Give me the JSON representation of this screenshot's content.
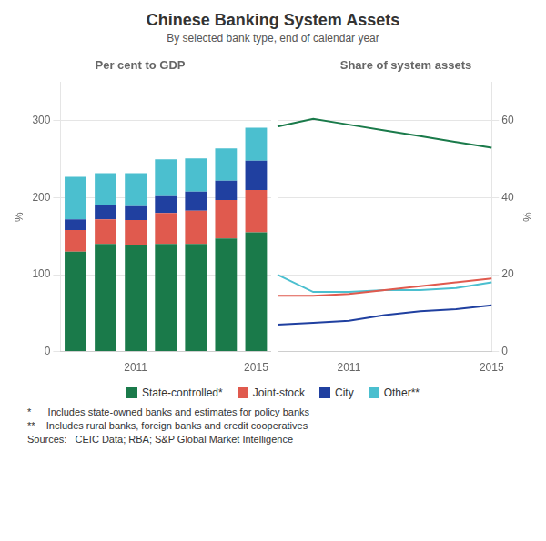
{
  "title": "Chinese Banking System Assets",
  "subtitle": "By selected bank type, end of calendar year",
  "legend": "bottom",
  "annotations": [
    "*      Includes state-owned banks and estimates for policy banks",
    "**    Includes rural banks, foreign banks and credit cooperatives",
    "Sources:   CEIC Data; RBA; S&P Global Market Intelligence"
  ],
  "chart_data": [
    {
      "type": "bar",
      "stacked": true,
      "title": "Per cent to GDP",
      "ylabel": "%",
      "categories": [
        null,
        null,
        "2011",
        null,
        null,
        null,
        "2015"
      ],
      "series": [
        {
          "name": "State-controlled*",
          "color": "#1a7a4a",
          "values": [
            130,
            140,
            138,
            140,
            140,
            147,
            155
          ]
        },
        {
          "name": "Joint-stock",
          "color": "#e05a4e",
          "values": [
            28,
            32,
            33,
            40,
            43,
            50,
            55
          ]
        },
        {
          "name": "City",
          "color": "#2040a0",
          "values": [
            14,
            18,
            18,
            22,
            25,
            25,
            38
          ]
        },
        {
          "name": "Other**",
          "color": "#4bbfcf",
          "values": [
            55,
            42,
            43,
            48,
            43,
            42,
            43
          ]
        }
      ],
      "ylim": [
        0,
        350
      ],
      "yticks": [
        0,
        100,
        200,
        300
      ],
      "grid": true
    },
    {
      "type": "line",
      "title": "Share of system assets",
      "ylabel": "%",
      "marker": "none",
      "categories": [
        null,
        null,
        "2011",
        null,
        null,
        null,
        "2015"
      ],
      "series": [
        {
          "name": "State-controlled*",
          "color": "#1a7a4a",
          "values": [
            58.5,
            60.5,
            59.0,
            57.5,
            56.0,
            54.5,
            53.0
          ]
        },
        {
          "name": "Joint-stock",
          "color": "#e05a4e",
          "values": [
            14.5,
            14.5,
            15.0,
            16.0,
            17.0,
            18.0,
            19.0
          ]
        },
        {
          "name": "City",
          "color": "#2040a0",
          "values": [
            7.0,
            7.5,
            8.0,
            9.5,
            10.5,
            11.0,
            12.0
          ]
        },
        {
          "name": "Other**",
          "color": "#4bbfcf",
          "values": [
            20.0,
            15.5,
            15.5,
            16.0,
            16.0,
            16.5,
            18.0
          ]
        }
      ],
      "ylim": [
        0,
        70
      ],
      "yticks": [
        0,
        20,
        40,
        60
      ],
      "grid": true
    }
  ]
}
